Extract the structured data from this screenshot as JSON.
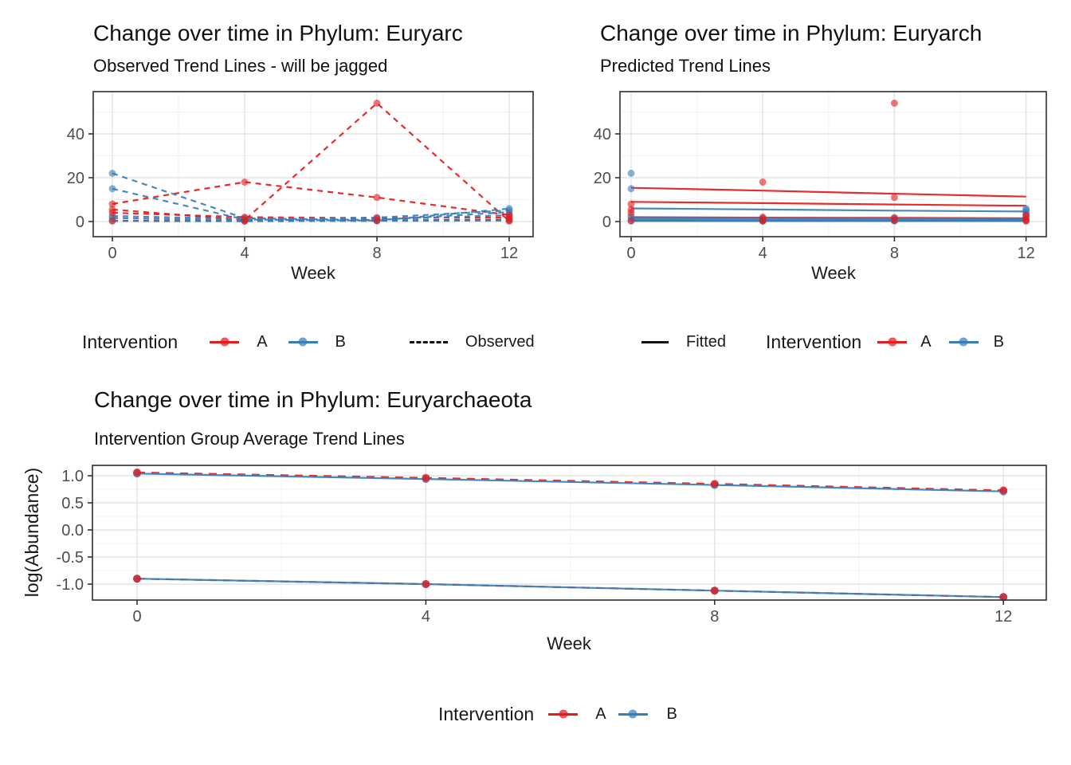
{
  "colors": {
    "intervention_a": "#E41A1C",
    "intervention_b": "#377EB8",
    "observed_key": "#111111",
    "fitted_key": "#111111",
    "axis_text": "#4d4d4d",
    "title_text": "#111111",
    "grid_major": "#E3E3E3",
    "grid_minor": "#F2F2F2",
    "panel_border": "#2e2e2e",
    "panel_background": "#FFFFFF"
  },
  "legend_labels": {
    "intervention": "Intervention",
    "a": "A",
    "b": "B",
    "observed": "Observed",
    "fitted": "Fitted"
  },
  "chart_data": [
    {
      "id": "observed",
      "type": "line",
      "title": "Change over time in Phylum: Euryarc",
      "subtitle": "Observed Trend Lines - will be jagged",
      "xlabel": "Week",
      "ylabel": "",
      "x": [
        0,
        4,
        8,
        12
      ],
      "xtick_labels": [
        "0",
        "4",
        "8",
        "12"
      ],
      "x_minor": [
        2,
        6,
        10
      ],
      "ytick_values": [
        0,
        20,
        40
      ],
      "ytick_labels": [
        "0",
        "20",
        "40"
      ],
      "y_minor": [
        10,
        30,
        50
      ],
      "xlim": [
        -0.58,
        12.72
      ],
      "ylim": [
        -6.5,
        59
      ],
      "grid": "major+minor",
      "legend_position": "bottom",
      "series": [
        {
          "name": "a-subject-1",
          "group": "A",
          "color": "#E41A1C",
          "style": "dashed",
          "points": true,
          "values": [
            8,
            18,
            11,
            3
          ]
        },
        {
          "name": "a-subject-2",
          "group": "A",
          "color": "#E41A1C",
          "style": "dashed",
          "points": true,
          "values": [
            5.5,
            0.7,
            54,
            0.2
          ]
        },
        {
          "name": "a-subject-3",
          "group": "A",
          "color": "#E41A1C",
          "style": "dashed",
          "points": true,
          "values": [
            4,
            2,
            1.6,
            1.9
          ]
        },
        {
          "name": "a-subject-4",
          "group": "A",
          "color": "#E41A1C",
          "style": "dashed",
          "points": true,
          "values": [
            0.4,
            0.3,
            0.5,
            0.9
          ]
        },
        {
          "name": "b-subject-1",
          "group": "B",
          "color": "#377EB8",
          "style": "dashed",
          "points": true,
          "values": [
            22,
            1.5,
            0.7,
            4.3
          ]
        },
        {
          "name": "b-subject-2",
          "group": "B",
          "color": "#377EB8",
          "style": "dashed",
          "points": true,
          "values": [
            15,
            0.9,
            0.4,
            5.9
          ]
        },
        {
          "name": "b-subject-3",
          "group": "B",
          "color": "#377EB8",
          "style": "dashed",
          "points": true,
          "values": [
            2.5,
            1.2,
            1.8,
            5.1
          ]
        },
        {
          "name": "b-subject-4",
          "group": "B",
          "color": "#377EB8",
          "style": "dashed",
          "points": true,
          "values": [
            1.6,
            0.6,
            1.0,
            2.9
          ]
        },
        {
          "name": "b-subject-5",
          "group": "B",
          "color": "#377EB8",
          "style": "dashed",
          "points": true,
          "values": [
            0.2,
            0.15,
            0.3,
            0.45
          ]
        }
      ]
    },
    {
      "id": "predicted",
      "type": "line",
      "title": "Change over time in Phylum: Euryarch",
      "subtitle": "Predicted Trend Lines",
      "xlabel": "Week",
      "ylabel": "",
      "x": [
        0,
        4,
        8,
        12
      ],
      "xtick_labels": [
        "0",
        "4",
        "8",
        "12"
      ],
      "x_minor": [
        2,
        6,
        10
      ],
      "ytick_values": [
        0,
        20,
        40
      ],
      "ytick_labels": [
        "0",
        "20",
        "40"
      ],
      "y_minor": [
        10,
        30,
        50
      ],
      "xlim": [
        -0.3,
        12.75
      ],
      "ylim": [
        -6.5,
        59
      ],
      "grid": "major+minor",
      "legend_position": "bottom",
      "series": [
        {
          "name": "a-fitted-1",
          "group": "A",
          "color": "#E41A1C",
          "style": "solid",
          "points": false,
          "values": [
            15.4,
            14.1,
            12.7,
            11.4
          ]
        },
        {
          "name": "a-fitted-2",
          "group": "A",
          "color": "#E41A1C",
          "style": "solid",
          "points": false,
          "values": [
            9.0,
            8.4,
            7.8,
            7.2
          ]
        },
        {
          "name": "a-fitted-3",
          "group": "A",
          "color": "#E41A1C",
          "style": "solid",
          "points": false,
          "values": [
            2.0,
            1.8,
            1.7,
            1.5
          ]
        },
        {
          "name": "a-fitted-4",
          "group": "A",
          "color": "#E41A1C",
          "style": "solid",
          "points": false,
          "values": [
            0.35,
            0.33,
            0.31,
            0.3
          ]
        },
        {
          "name": "b-fitted-1",
          "group": "B",
          "color": "#377EB8",
          "style": "solid",
          "points": false,
          "values": [
            6.0,
            5.5,
            5.0,
            4.6
          ]
        },
        {
          "name": "b-fitted-2",
          "group": "B",
          "color": "#377EB8",
          "style": "solid",
          "points": false,
          "values": [
            1.7,
            1.55,
            1.4,
            1.25
          ]
        },
        {
          "name": "b-fitted-3",
          "group": "B",
          "color": "#377EB8",
          "style": "solid",
          "points": false,
          "values": [
            0.9,
            0.83,
            0.76,
            0.7
          ]
        },
        {
          "name": "b-fitted-4",
          "group": "B",
          "color": "#377EB8",
          "style": "solid",
          "points": false,
          "values": [
            0.5,
            0.46,
            0.43,
            0.4
          ]
        },
        {
          "name": "b-fitted-5",
          "group": "B",
          "color": "#377EB8",
          "style": "solid",
          "points": false,
          "values": [
            0.25,
            0.23,
            0.21,
            0.2
          ]
        }
      ],
      "scatter_series": [
        {
          "name": "a-observed-points-1",
          "color": "#E41A1C",
          "values": [
            8,
            18,
            11,
            3
          ]
        },
        {
          "name": "a-observed-points-2",
          "color": "#E41A1C",
          "values": [
            5.5,
            0.7,
            54,
            0.2
          ]
        },
        {
          "name": "a-observed-points-3",
          "color": "#E41A1C",
          "values": [
            4,
            2,
            1.6,
            1.9
          ]
        },
        {
          "name": "a-observed-points-4",
          "color": "#E41A1C",
          "values": [
            0.4,
            0.3,
            0.5,
            0.9
          ]
        },
        {
          "name": "b-observed-points-1",
          "color": "#377EB8",
          "values": [
            22,
            1.5,
            0.7,
            4.3
          ]
        },
        {
          "name": "b-observed-points-2",
          "color": "#377EB8",
          "values": [
            15,
            0.9,
            0.4,
            5.9
          ]
        },
        {
          "name": "b-observed-points-3",
          "color": "#377EB8",
          "values": [
            2.5,
            1.2,
            1.8,
            5.1
          ]
        },
        {
          "name": "b-observed-points-4",
          "color": "#377EB8",
          "values": [
            1.6,
            0.6,
            1.0,
            2.9
          ]
        },
        {
          "name": "b-observed-points-5",
          "color": "#377EB8",
          "values": [
            0.2,
            0.15,
            0.3,
            0.45
          ]
        }
      ]
    },
    {
      "id": "average",
      "type": "line",
      "title": "Change over time in Phylum: Euryarchaeota",
      "subtitle": "Intervention Group Average Trend Lines",
      "xlabel": "Week",
      "ylabel": "log(Abundance)",
      "x": [
        0,
        4,
        8,
        12
      ],
      "xtick_labels": [
        "0",
        "4",
        "8",
        "12"
      ],
      "x_minor": [
        2,
        6,
        10
      ],
      "ytick_values": [
        1.0,
        0.5,
        0.0,
        -0.5,
        -1.0
      ],
      "ytick_labels": [
        "1.0",
        "0.5",
        "0.0",
        "-0.5",
        "-1.0"
      ],
      "y_minor": [
        0.75,
        0.25,
        -0.25,
        -0.75,
        -1.25
      ],
      "xlim": [
        -0.62,
        12.62
      ],
      "ylim": [
        -1.3,
        1.19
      ],
      "grid": "major+minor",
      "legend_position": "bottom",
      "series": [
        {
          "name": "group-a-average-upper",
          "group": "A",
          "color": "#E41A1C",
          "style": "dashed",
          "points": true,
          "values": [
            1.06,
            0.96,
            0.85,
            0.73
          ]
        },
        {
          "name": "group-b-average-upper",
          "group": "B",
          "color": "#377EB8",
          "style": "solid",
          "points": true,
          "values": [
            1.04,
            0.94,
            0.83,
            0.71
          ]
        },
        {
          "name": "group-a-average-lower",
          "group": "A",
          "color": "#E41A1C",
          "style": "dashed",
          "points": true,
          "values": [
            -0.9,
            -1.0,
            -1.12,
            -1.24
          ]
        },
        {
          "name": "group-b-average-lower",
          "group": "B",
          "color": "#377EB8",
          "style": "solid",
          "points": true,
          "values": [
            -0.9,
            -1.0,
            -1.12,
            -1.24
          ]
        }
      ]
    }
  ]
}
